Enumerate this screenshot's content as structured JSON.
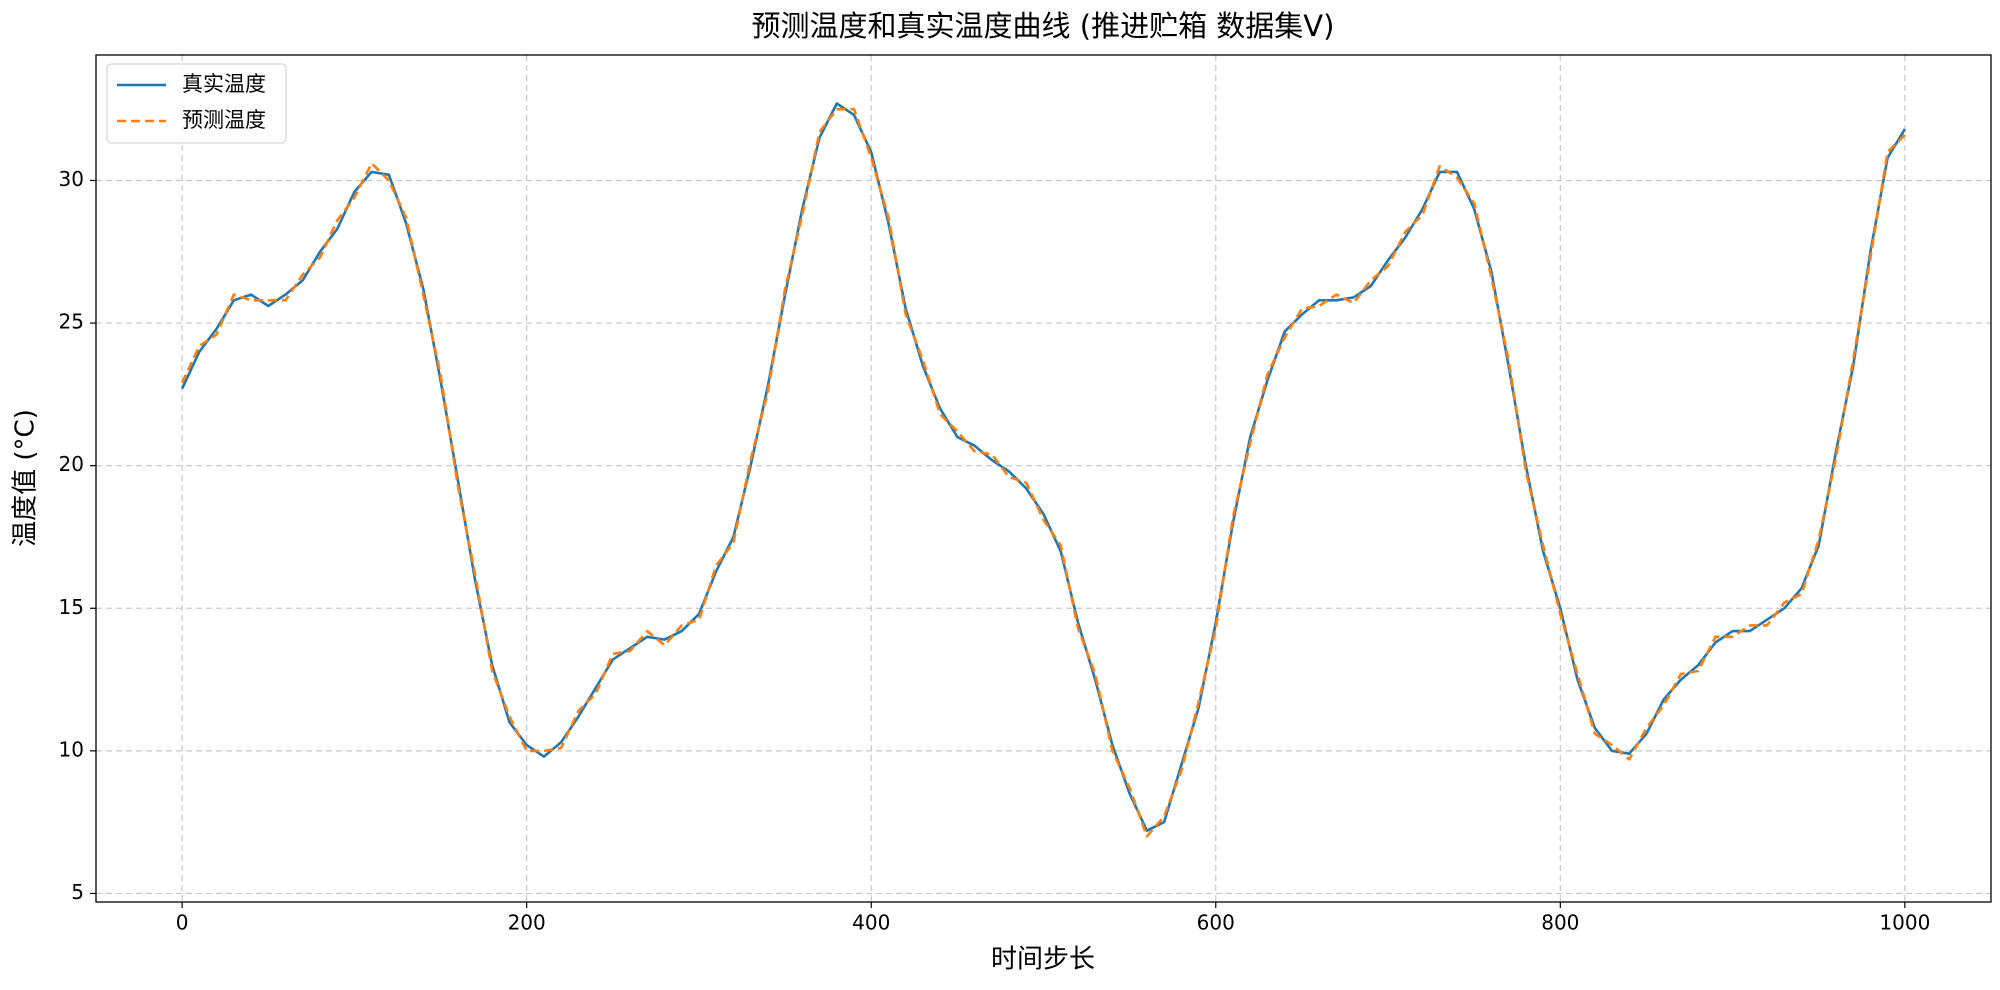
{
  "chart_data": {
    "type": "line",
    "title": "预测温度和真实温度曲线 (推进贮箱 数据集V)",
    "x_label": "时间步长",
    "y_label": "温度值 (°C)",
    "x": [
      0,
      10,
      20,
      30,
      40,
      50,
      60,
      70,
      80,
      90,
      100,
      110,
      120,
      130,
      140,
      150,
      160,
      170,
      180,
      190,
      200,
      210,
      220,
      230,
      240,
      250,
      260,
      270,
      280,
      290,
      300,
      310,
      320,
      330,
      340,
      350,
      360,
      370,
      380,
      390,
      400,
      410,
      420,
      430,
      440,
      450,
      460,
      470,
      480,
      490,
      500,
      510,
      520,
      530,
      540,
      550,
      560,
      570,
      580,
      590,
      600,
      610,
      620,
      630,
      640,
      650,
      660,
      670,
      680,
      690,
      700,
      710,
      720,
      730,
      740,
      750,
      760,
      770,
      780,
      790,
      800,
      810,
      820,
      830,
      840,
      850,
      860,
      870,
      880,
      890,
      900,
      910,
      920,
      930,
      940,
      950,
      960,
      970,
      980,
      990,
      1000
    ],
    "series": [
      {
        "name": "真实温度",
        "color": "#1f77b4",
        "linestyle": "solid",
        "values": [
          22.7,
          24,
          24.8,
          25.8,
          26,
          25.6,
          26,
          26.5,
          27.5,
          28.3,
          29.6,
          30.3,
          30.2,
          28.5,
          26.2,
          23,
          19.5,
          16,
          13,
          11,
          10.2,
          9.8,
          10.3,
          11.2,
          12.2,
          13.2,
          13.6,
          14,
          13.9,
          14.2,
          14.8,
          16.3,
          17.5,
          20,
          22.8,
          26,
          29,
          31.5,
          32.7,
          32.3,
          31,
          28.5,
          25.5,
          23.5,
          22,
          21,
          20.7,
          20.2,
          19.8,
          19.2,
          18.3,
          17,
          14.5,
          12.5,
          10.2,
          8.5,
          7.2,
          7.5,
          9.5,
          11.5,
          14.5,
          18,
          21,
          23,
          24.7,
          25.3,
          25.8,
          25.8,
          25.9,
          26.3,
          27.2,
          28,
          29,
          30.3,
          30.3,
          29,
          26.8,
          23.5,
          20,
          17,
          15,
          12.5,
          10.8,
          10,
          9.9,
          10.6,
          11.8,
          12.5,
          13,
          13.8,
          14.2,
          14.2,
          14.6,
          15,
          15.7,
          17.2,
          20.5,
          23.5,
          27.5,
          30.8,
          31.8
        ]
      },
      {
        "name": "预测温度",
        "color": "#ff7f0e",
        "linestyle": "dashed",
        "values": [
          22.9,
          24.2,
          24.6,
          26,
          25.8,
          25.8,
          25.8,
          26.7,
          27.3,
          28.6,
          29.4,
          30.6,
          30,
          28.7,
          26,
          23.2,
          19.3,
          16.2,
          12.8,
          11.2,
          10,
          10,
          10.1,
          11.4,
          12,
          13.4,
          13.5,
          14.2,
          13.7,
          14.4,
          14.6,
          16.5,
          17.3,
          20.2,
          22.6,
          26.2,
          28.8,
          31.7,
          32.5,
          32.5,
          30.8,
          28.7,
          25.3,
          23.7,
          21.8,
          21.2,
          20.5,
          20.4,
          19.6,
          19.4,
          18.1,
          17.2,
          14.3,
          12.7,
          10,
          8.7,
          7,
          7.7,
          9.3,
          11.7,
          14.3,
          18.2,
          20.8,
          23.2,
          24.5,
          25.5,
          25.6,
          26,
          25.7,
          26.5,
          27,
          28.2,
          28.8,
          30.5,
          30.1,
          29.2,
          26.6,
          23.7,
          19.8,
          17.2,
          14.8,
          12.7,
          10.6,
          10.2,
          9.7,
          10.8,
          11.6,
          12.7,
          12.8,
          14,
          14,
          14.4,
          14.4,
          15.2,
          15.5,
          17.4,
          20.3,
          23.7,
          27.3,
          31,
          31.6
        ]
      }
    ],
    "xlim": [
      -50,
      1050
    ],
    "ylim": [
      4.7,
      34.4
    ],
    "xticks": [
      0,
      200,
      400,
      600,
      800,
      1000
    ],
    "yticks": [
      5,
      10,
      15,
      20,
      25,
      30
    ],
    "grid": true,
    "legend": "upper left"
  }
}
